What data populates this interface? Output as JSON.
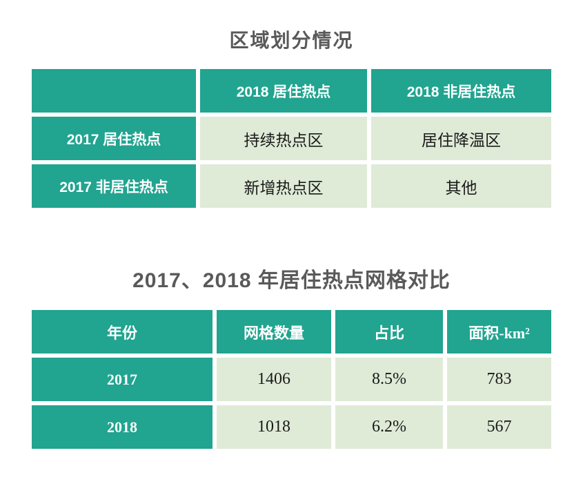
{
  "slide": {
    "background": "#ffffff"
  },
  "colors": {
    "teal_header": "#21a490",
    "cell_green": "#dfebd7",
    "title_text": "#595959",
    "cell_text": "#1a1a1a",
    "header_text": "#ffffff"
  },
  "region_table": {
    "title": "区域划分情况",
    "corner": "",
    "col_headers": [
      "2018 居住热点",
      "2018 非居住热点"
    ],
    "rows": [
      {
        "label": "2017 居住热点",
        "cells": [
          "持续热点区",
          "居住降温区"
        ]
      },
      {
        "label": "2017 非居住热点",
        "cells": [
          "新增热点区",
          "其他"
        ]
      }
    ]
  },
  "grid_table": {
    "title": "2017、2018 年居住热点网格对比",
    "col_headers": [
      "年份",
      "网格数量",
      "占比",
      "面积-km²"
    ],
    "rows": [
      {
        "label": "2017",
        "cells": [
          "1406",
          "8.5%",
          "783"
        ]
      },
      {
        "label": "2018",
        "cells": [
          "1018",
          "6.2%",
          "567"
        ]
      }
    ]
  },
  "chart_data": [
    {
      "type": "table",
      "title": "区域划分情况",
      "columns": [
        "",
        "2018 居住热点",
        "2018 非居住热点"
      ],
      "rows": [
        [
          "2017 居住热点",
          "持续热点区",
          "居住降温区"
        ],
        [
          "2017 非居住热点",
          "新增热点区",
          "其他"
        ]
      ]
    },
    {
      "type": "table",
      "title": "2017、2018 年居住热点网格对比",
      "columns": [
        "年份",
        "网格数量",
        "占比",
        "面积-km²"
      ],
      "rows": [
        [
          "2017",
          "1406",
          "8.5%",
          "783"
        ],
        [
          "2018",
          "1018",
          "6.2%",
          "567"
        ]
      ]
    }
  ]
}
